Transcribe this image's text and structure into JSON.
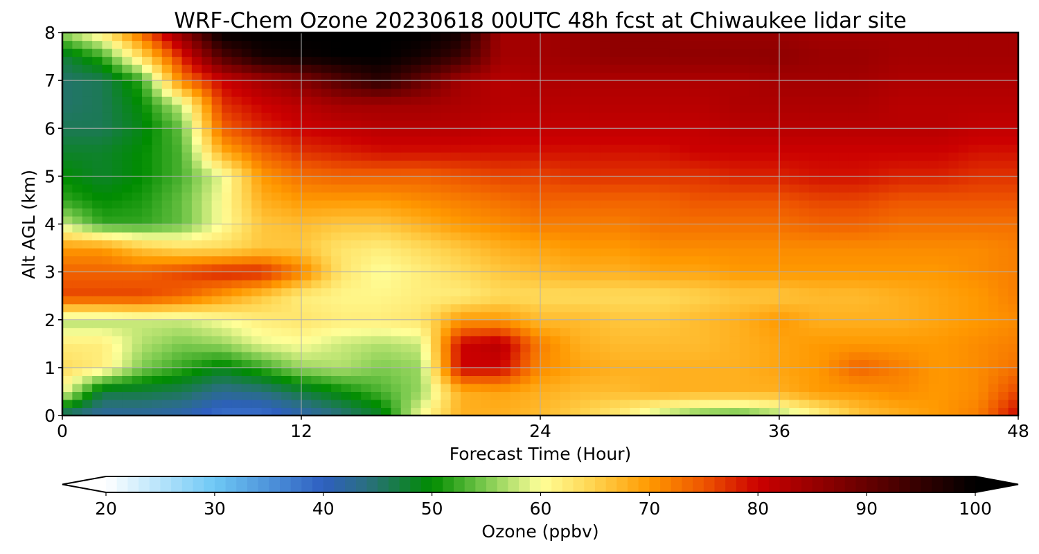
{
  "chart_data": {
    "type": "heatmap",
    "title": "WRF-Chem Ozone  20230618 00UTC 48h fcst at Chiwaukee lidar site",
    "xlabel": "Forecast Time (Hour)",
    "ylabel": "Alt AGL (km)",
    "xlim": [
      0,
      48
    ],
    "ylim": [
      0,
      8
    ],
    "xticks": [
      0,
      12,
      24,
      36,
      48
    ],
    "yticks": [
      0,
      1,
      2,
      3,
      4,
      5,
      6,
      7,
      8
    ],
    "grid": true,
    "colorbar": {
      "label": "Ozone  (ppbv)",
      "min": 20,
      "max": 100,
      "ticks": [
        20,
        30,
        40,
        50,
        60,
        70,
        80,
        90,
        100
      ],
      "extend": "both",
      "colors": [
        {
          "v": 20,
          "c": "#ffffff"
        },
        {
          "v": 30,
          "c": "#6ec8f5"
        },
        {
          "v": 40,
          "c": "#2e5fc0"
        },
        {
          "v": 44,
          "c": "#2a6f80"
        },
        {
          "v": 50,
          "c": "#008c00"
        },
        {
          "v": 55,
          "c": "#7ecb50"
        },
        {
          "v": 60,
          "c": "#ffff99"
        },
        {
          "v": 65,
          "c": "#ffd24d"
        },
        {
          "v": 70,
          "c": "#ff9900"
        },
        {
          "v": 75,
          "c": "#ee5500"
        },
        {
          "v": 80,
          "c": "#cc0000"
        },
        {
          "v": 90,
          "c": "#660000"
        },
        {
          "v": 100,
          "c": "#000000"
        }
      ]
    },
    "x": [
      0,
      2,
      4,
      6,
      8,
      10,
      12,
      14,
      16,
      18,
      20,
      22,
      24,
      26,
      28,
      30,
      32,
      34,
      36,
      38,
      40,
      42,
      44,
      46,
      48
    ],
    "y": [
      0,
      0.5,
      1,
      1.5,
      2,
      2.5,
      3,
      3.5,
      4,
      4.5,
      5,
      5.5,
      6,
      6.5,
      7,
      7.5,
      8
    ],
    "z": [
      [
        44,
        42,
        42,
        41,
        38,
        38,
        41,
        44,
        48,
        60,
        68,
        68,
        67,
        65,
        62,
        57,
        54,
        53,
        56,
        61,
        66,
        68,
        70,
        72,
        80
      ],
      [
        60,
        47,
        47,
        46,
        43,
        44,
        47,
        50,
        53,
        56,
        68,
        69,
        68,
        67,
        67,
        68,
        68,
        68,
        68,
        70,
        70,
        71,
        70,
        71,
        76
      ],
      [
        64,
        62,
        55,
        52,
        49,
        52,
        56,
        57,
        55,
        56,
        80,
        80,
        71,
        69,
        68,
        68,
        68,
        68,
        69,
        70,
        74,
        72,
        70,
        71,
        73
      ],
      [
        62,
        62,
        57,
        55,
        56,
        59,
        60,
        58,
        57,
        58,
        80,
        82,
        72,
        68,
        67,
        67,
        67,
        68,
        69,
        70,
        70,
        70,
        70,
        71,
        72
      ],
      [
        57,
        57,
        58,
        58,
        60,
        62,
        63,
        62,
        62,
        63,
        70,
        70,
        67,
        67,
        66,
        66,
        67,
        68,
        70,
        68,
        68,
        68,
        69,
        70,
        71
      ],
      [
        76,
        76,
        76,
        74,
        70,
        66,
        62,
        61,
        61,
        62,
        62,
        64,
        64,
        64,
        64,
        64,
        65,
        66,
        66,
        67,
        67,
        68,
        69,
        70,
        72
      ],
      [
        74,
        74,
        74,
        76,
        78,
        78,
        72,
        63,
        60,
        62,
        64,
        66,
        67,
        68,
        68,
        69,
        69,
        70,
        70,
        70,
        70,
        70,
        70,
        71,
        72
      ],
      [
        70,
        70,
        66,
        64,
        64,
        66,
        66,
        63,
        62,
        64,
        66,
        68,
        69,
        70,
        70,
        71,
        71,
        71,
        71,
        71,
        71,
        71,
        71,
        71,
        72
      ],
      [
        58,
        52,
        52,
        54,
        60,
        66,
        67,
        66,
        66,
        68,
        70,
        71,
        72,
        72,
        72,
        73,
        73,
        73,
        73,
        74,
        74,
        73,
        73,
        73,
        73
      ],
      [
        52,
        50,
        51,
        54,
        60,
        68,
        70,
        70,
        70,
        71,
        72,
        73,
        74,
        74,
        74,
        74,
        75,
        75,
        75,
        76,
        76,
        75,
        75,
        75,
        75
      ],
      [
        50,
        48,
        50,
        53,
        59,
        70,
        73,
        74,
        74,
        74,
        75,
        76,
        76,
        77,
        77,
        77,
        77,
        78,
        78,
        79,
        79,
        78,
        78,
        77,
        77
      ],
      [
        48,
        48,
        50,
        53,
        68,
        74,
        77,
        78,
        79,
        79,
        79,
        79,
        79,
        79,
        79,
        79,
        80,
        80,
        80,
        80,
        80,
        80,
        80,
        79,
        79
      ],
      [
        46,
        46,
        49,
        54,
        74,
        78,
        80,
        81,
        82,
        82,
        82,
        81,
        81,
        81,
        81,
        81,
        81,
        82,
        82,
        82,
        82,
        82,
        82,
        81,
        81
      ],
      [
        45,
        46,
        50,
        58,
        77,
        80,
        82,
        84,
        84,
        84,
        83,
        82,
        82,
        82,
        82,
        82,
        82,
        83,
        83,
        83,
        83,
        82,
        82,
        82,
        82
      ],
      [
        45,
        46,
        52,
        72,
        80,
        84,
        87,
        92,
        96,
        90,
        84,
        82,
        83,
        83,
        83,
        83,
        83,
        83,
        84,
        84,
        84,
        83,
        83,
        83,
        83
      ],
      [
        47,
        52,
        64,
        78,
        92,
        98,
        99,
        100,
        100,
        98,
        94,
        84,
        84,
        85,
        86,
        86,
        86,
        86,
        86,
        85,
        85,
        84,
        84,
        84,
        84
      ],
      [
        56,
        62,
        74,
        86,
        100,
        100,
        100,
        100,
        100,
        100,
        98,
        84,
        84,
        85,
        86,
        86,
        85,
        85,
        85,
        84,
        84,
        84,
        84,
        84,
        84
      ]
    ]
  }
}
